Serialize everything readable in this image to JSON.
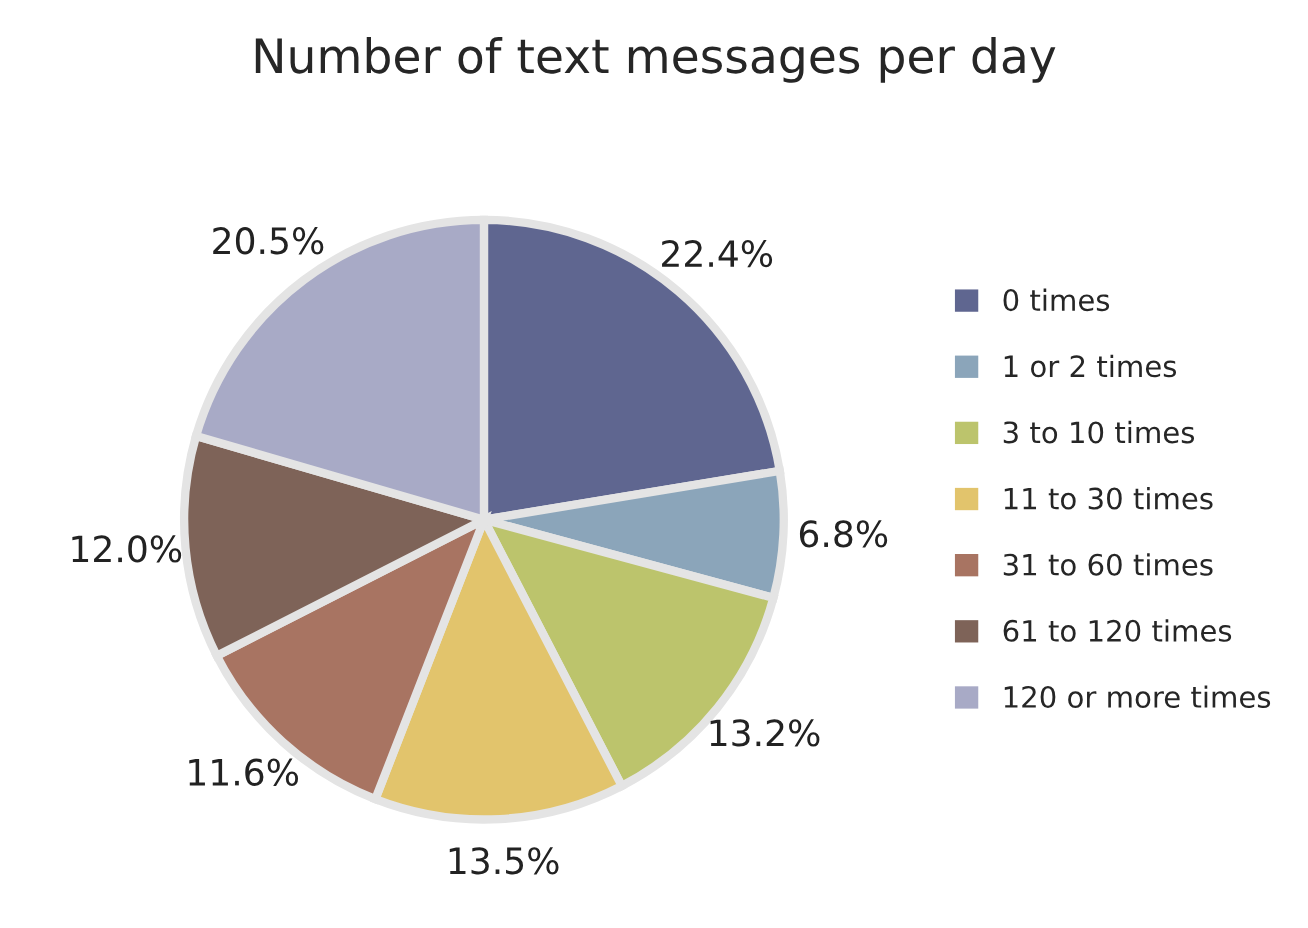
{
  "chart_data": {
    "type": "pie",
    "title": "Number of text messages per day",
    "categories": [
      "0 times",
      "1 or 2 times",
      "3 to 10 times",
      "11 to 30 times",
      "31 to 60 times",
      "61 to 120 times",
      "120 or more times"
    ],
    "values": [
      22.4,
      6.8,
      13.2,
      13.5,
      11.6,
      12.0,
      20.5
    ],
    "value_labels": [
      "22.4%",
      "6.8%",
      "13.2%",
      "13.5%",
      "11.6%",
      "12.0%",
      "20.5%"
    ],
    "colors": [
      "#5f6690",
      "#8ba5ba",
      "#bcc46c",
      "#e2c46c",
      "#a87462",
      "#7e6358",
      "#a8aac6"
    ],
    "legend": "right"
  }
}
